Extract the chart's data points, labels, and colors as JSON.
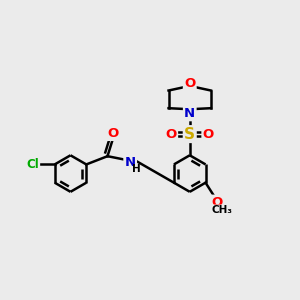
{
  "background_color": "#ebebeb",
  "bond_color": "#000000",
  "bond_width": 1.8,
  "atom_colors": {
    "O": "#ff0000",
    "N": "#0000cc",
    "Cl": "#00aa00",
    "S": "#ccaa00",
    "C": "#000000",
    "H": "#000000"
  },
  "figsize": [
    3.0,
    3.0
  ],
  "dpi": 100
}
